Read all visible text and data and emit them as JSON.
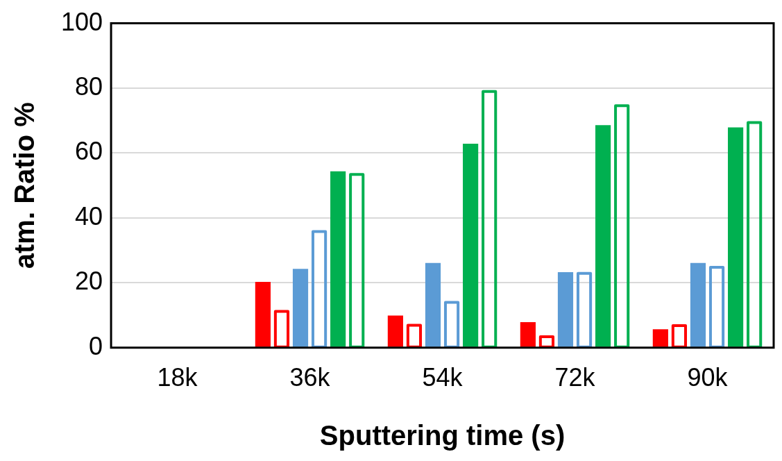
{
  "chart_data": {
    "type": "bar",
    "xlabel": "Sputtering time (s)",
    "ylabel": "atm. Ratio %",
    "categories": [
      "18k",
      "36k",
      "54k",
      "72k",
      "90k"
    ],
    "series": [
      {
        "color": "#ff0000",
        "values": [
          null,
          20.3,
          9.9,
          7.9,
          5.7
        ]
      },
      {
        "color": "#ff0000",
        "line_style": "solid",
        "values": [
          null,
          11.2,
          6.9,
          3.4,
          6.8
        ]
      },
      {
        "color": "#5b9bd5",
        "values": [
          null,
          24.3,
          26.1,
          23.3,
          26.1
        ]
      },
      {
        "color": "#5b9bd5",
        "line_style": "solid",
        "values": [
          null,
          35.8,
          14.0,
          22.9,
          24.8
        ]
      },
      {
        "color": "#00b050",
        "values": [
          null,
          54.4,
          62.9,
          68.6,
          67.9
        ]
      },
      {
        "color": "#00b050",
        "line_style": "solid",
        "values": [
          null,
          53.4,
          79.0,
          74.6,
          69.4
        ]
      }
    ],
    "ylim": [
      0,
      100
    ],
    "yticks": [
      0,
      20,
      40,
      60,
      80,
      100
    ],
    "grid": "y",
    "legend": false
  }
}
